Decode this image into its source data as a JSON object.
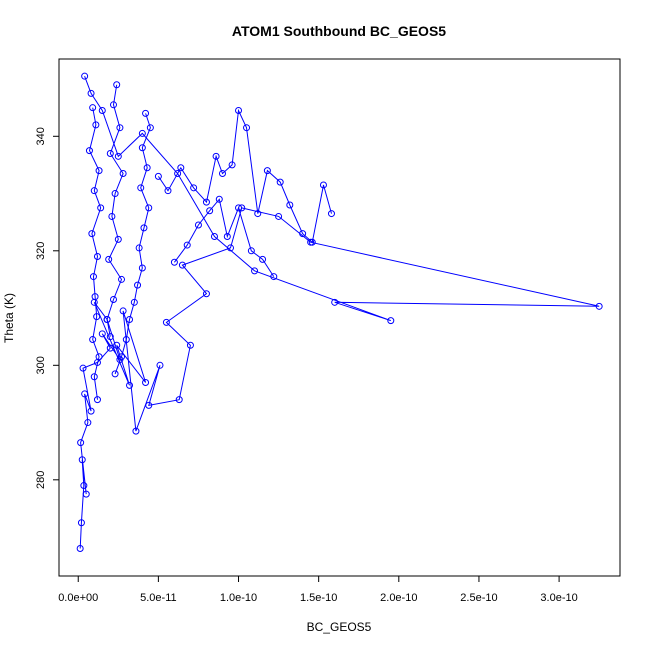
{
  "chart_data": {
    "type": "scatter",
    "title": "ATOM1 Southbound BC_GEOS5",
    "xlabel": "BC_GEOS5",
    "ylabel": "Theta (K)",
    "xlim": [
      -1.2e-11,
      3.38e-10
    ],
    "ylim": [
      263.2,
      353.5
    ],
    "x_ticks": [
      0,
      5e-11,
      1e-10,
      1.5e-10,
      2e-10,
      2.5e-10,
      3e-10
    ],
    "x_tick_labels": [
      "0.0e+00",
      "5.0e-11",
      "1.0e-10",
      "1.5e-10",
      "2.0e-10",
      "2.5e-10",
      "3.0e-10"
    ],
    "y_ticks": [
      280,
      300,
      320,
      340
    ],
    "y_tick_labels": [
      "280",
      "300",
      "320",
      "340"
    ],
    "grid": false,
    "series": [
      {
        "color": "#0000ff",
        "style": "line+points",
        "x": [
          1.2e-12,
          2e-12,
          3.5e-12,
          2.5e-12,
          5e-12,
          1.5e-12,
          6e-12,
          4e-12,
          8e-12,
          3e-12,
          1.2e-11,
          2e-11,
          1.5e-11,
          2.6e-11,
          1.8e-11,
          1e-11,
          3.2e-11,
          2.4e-11,
          4.2e-11,
          2.8e-11,
          3.6e-11,
          5.1e-11,
          4.4e-11,
          6.3e-11,
          7e-11,
          5.5e-11,
          8e-11,
          6.5e-11,
          9.5e-11,
          1.02e-10,
          1.25e-10,
          1.45e-10,
          3.25e-10,
          1.6e-10,
          1.95e-10,
          1.1e-10,
          8.5e-11,
          6.2e-11,
          4e-11,
          2.5e-11,
          1.5e-11,
          8e-12,
          4e-12
        ],
        "y": [
          268.0,
          272.5,
          279.0,
          283.5,
          277.5,
          286.5,
          290.0,
          295.0,
          292.0,
          299.5,
          300.5,
          303.0,
          305.5,
          301.0,
          308.0,
          311.0,
          296.5,
          303.5,
          297.0,
          309.5,
          288.5,
          300.0,
          293.0,
          294.0,
          303.5,
          307.5,
          312.5,
          317.5,
          320.5,
          327.5,
          326.0,
          321.5,
          310.3,
          311.0,
          307.8,
          316.5,
          322.5,
          333.5,
          340.5,
          336.5,
          344.5,
          347.5,
          350.5
        ]
      },
      {
        "color": "#0000ff",
        "style": "line+points",
        "x": [
          9e-12,
          1.1e-11,
          7e-12,
          1.3e-11,
          1e-11,
          1.4e-11,
          8.5e-12,
          1.2e-11,
          9.5e-12,
          1.05e-11,
          1.15e-11,
          9e-12,
          1.3e-11,
          1e-11,
          1.2e-11
        ],
        "y": [
          345.0,
          342.0,
          337.5,
          334.0,
          330.5,
          327.5,
          323.0,
          319.0,
          315.5,
          312.0,
          308.5,
          304.5,
          301.5,
          298.0,
          294.0
        ]
      },
      {
        "color": "#0000ff",
        "style": "line+points",
        "x": [
          4.2e-11,
          4.5e-11,
          4e-11,
          4.3e-11,
          3.9e-11,
          4.4e-11,
          4.1e-11,
          3.8e-11,
          4e-11,
          3.7e-11,
          3.5e-11,
          3.2e-11,
          3e-11,
          2.7e-11,
          2.3e-11
        ],
        "y": [
          344.0,
          341.5,
          338.0,
          334.5,
          331.0,
          327.5,
          324.0,
          320.5,
          317.0,
          314.0,
          311.0,
          308.0,
          304.5,
          301.5,
          298.5
        ]
      },
      {
        "color": "#0000ff",
        "style": "line+points",
        "x": [
          2.4e-11,
          2.2e-11,
          2.6e-11,
          2e-11,
          2.8e-11,
          2.3e-11,
          2.1e-11,
          2.5e-11,
          1.9e-11,
          2.7e-11,
          2.2e-11,
          1.8e-11,
          2e-11
        ],
        "y": [
          349.0,
          345.5,
          341.5,
          337.0,
          333.5,
          330.0,
          326.0,
          322.0,
          318.5,
          315.0,
          311.5,
          308.0,
          305.0
        ]
      },
      {
        "color": "#0000ff",
        "style": "line+points",
        "x": [
          5e-11,
          5.6e-11,
          6.4e-11,
          7.2e-11,
          8e-11,
          8.6e-11,
          9e-11,
          9.6e-11,
          1e-10,
          1.05e-10,
          1.12e-10,
          1.18e-10,
          1.26e-10,
          1.32e-10,
          1.4e-10,
          1.46e-10,
          1.53e-10,
          1.58e-10
        ],
        "y": [
          333.0,
          330.5,
          334.5,
          331.0,
          328.5,
          336.5,
          333.5,
          335.0,
          344.5,
          341.5,
          326.5,
          334.0,
          332.0,
          328.0,
          323.0,
          321.5,
          331.5,
          326.5
        ]
      },
      {
        "color": "#0000ff",
        "style": "line+points",
        "x": [
          6e-11,
          6.8e-11,
          7.5e-11,
          8.2e-11,
          8.8e-11,
          9.3e-11,
          1e-10,
          1.08e-10,
          1.15e-10,
          1.22e-10
        ],
        "y": [
          318.0,
          321.0,
          324.5,
          327.0,
          329.0,
          322.5,
          327.5,
          320.0,
          318.5,
          315.5
        ]
      }
    ]
  }
}
